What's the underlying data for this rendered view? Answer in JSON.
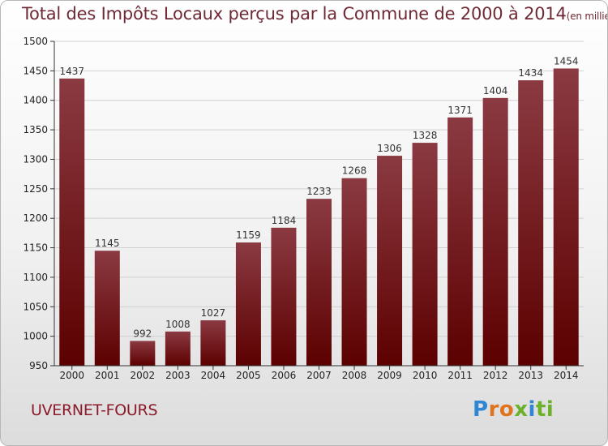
{
  "title": "Total des Impôts Locaux perçus par la Commune de 2000 à 2014",
  "title_unit": "(en milliers d'€)",
  "commune": "UVERNET-FOURS",
  "brand": [
    "P",
    "r",
    "o",
    "x",
    "i",
    "ti"
  ],
  "colors": {
    "bar_top": "#8b3a42",
    "bar_bottom": "#5c0000",
    "axis": "#333333",
    "grid": "#d0d0d0",
    "title": "#6f2a35"
  },
  "chart_data": {
    "type": "bar",
    "title": "Total des Impôts Locaux perçus par la Commune de 2000 à 2014",
    "xlabel": "",
    "ylabel": "",
    "categories": [
      "2000",
      "2001",
      "2002",
      "2003",
      "2004",
      "2005",
      "2006",
      "2007",
      "2008",
      "2009",
      "2010",
      "2011",
      "2012",
      "2013",
      "2014"
    ],
    "values": [
      1437,
      1145,
      992,
      1008,
      1027,
      1159,
      1184,
      1233,
      1268,
      1306,
      1328,
      1371,
      1404,
      1434,
      1454
    ],
    "ylim": [
      950,
      1500
    ],
    "yticks": [
      950,
      1000,
      1050,
      1100,
      1150,
      1200,
      1250,
      1300,
      1350,
      1400,
      1450,
      1500
    ],
    "grid": true,
    "legend": "none"
  }
}
